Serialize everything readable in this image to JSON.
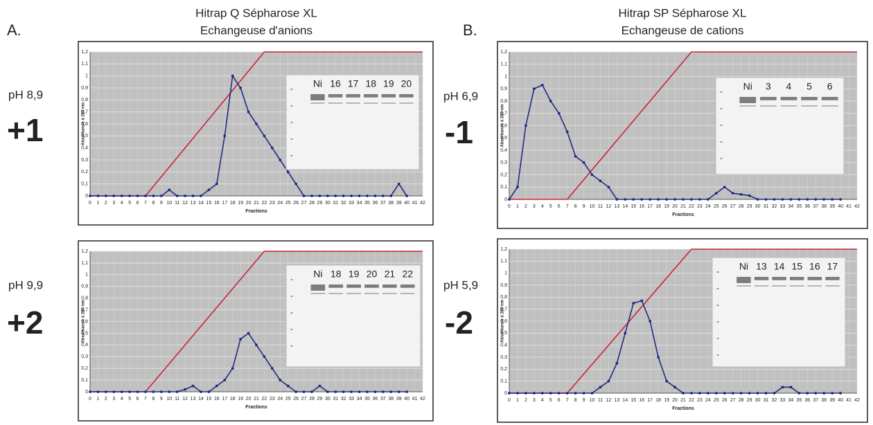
{
  "panels": [
    {
      "letter": "A.",
      "title": "Hitrap Q Sépharose XL",
      "subtitle": "Echangeuse d'anions"
    },
    {
      "letter": "B.",
      "title": "Hitrap SP Sépharose XL",
      "subtitle": "Echangeuse de cations"
    }
  ],
  "chart_data": [
    {
      "type": "line",
      "ph": "pH 8,9",
      "charge": "+1",
      "xlabel": "Fractions",
      "ylabel": "Absorbance à 280 nm",
      "xlim": [
        0,
        42
      ],
      "ylim": [
        0,
        1.2
      ],
      "grid": true,
      "xticks": [
        0,
        1,
        2,
        3,
        4,
        5,
        6,
        7,
        8,
        9,
        10,
        11,
        12,
        13,
        14,
        15,
        16,
        17,
        18,
        19,
        20,
        21,
        22,
        23,
        24,
        25,
        26,
        27,
        28,
        29,
        30,
        31,
        32,
        33,
        34,
        35,
        36,
        37,
        38,
        39,
        40,
        41,
        42
      ],
      "yticks": [
        0,
        {
          "value": 0.1,
          "label": "0,1"
        },
        {
          "value": 0.2,
          "label": "0,2"
        },
        {
          "value": 0.3,
          "label": "0,3"
        },
        {
          "value": 0.4,
          "label": "0,4"
        },
        {
          "value": 0.5,
          "label": "0,5"
        },
        {
          "value": 0.6,
          "label": "0,6"
        },
        {
          "value": 0.7,
          "label": "0,7"
        },
        {
          "value": 0.8,
          "label": "0,8"
        },
        {
          "value": 0.9,
          "label": "0,9"
        },
        1,
        {
          "value": 1.1,
          "label": "1,1"
        },
        {
          "value": 1.2,
          "label": "1,2"
        }
      ],
      "inset_labels": [
        "Ni",
        "16",
        "17",
        "18",
        "19",
        "20"
      ],
      "series": [
        {
          "color": "#cc2233",
          "marker": false,
          "x": [
            0,
            7,
            22,
            42
          ],
          "values": [
            0,
            0,
            1.2,
            1.2
          ]
        },
        {
          "color": "#1f2a80",
          "marker": true,
          "x": [
            0,
            1,
            2,
            3,
            4,
            5,
            6,
            7,
            8,
            9,
            10,
            11,
            12,
            13,
            14,
            15,
            16,
            17,
            18,
            19,
            20,
            21,
            22,
            23,
            24,
            25,
            26,
            27,
            28,
            29,
            30,
            31,
            32,
            33,
            34,
            35,
            36,
            37,
            38,
            39,
            40
          ],
          "values": [
            0,
            0,
            0,
            0,
            0,
            0,
            0,
            0,
            0,
            0,
            0.05,
            0,
            0,
            0,
            0,
            0.05,
            0.1,
            0.5,
            1.0,
            0.9,
            0.7,
            0.6,
            0.5,
            0.4,
            0.3,
            0.2,
            0.1,
            0,
            0,
            0,
            0,
            0,
            0,
            0,
            0,
            0,
            0,
            0,
            0,
            0.1,
            0
          ]
        }
      ]
    },
    {
      "type": "line",
      "ph": "pH 6,9",
      "charge": "-1",
      "xlabel": "Fractions",
      "ylabel": "Absorbance à 280 nm",
      "xlim": [
        0,
        42
      ],
      "ylim": [
        0,
        1.2
      ],
      "grid": true,
      "xticks": [
        0,
        1,
        2,
        3,
        4,
        5,
        6,
        7,
        8,
        9,
        10,
        11,
        12,
        13,
        14,
        15,
        16,
        17,
        18,
        19,
        20,
        21,
        22,
        23,
        24,
        25,
        26,
        27,
        28,
        29,
        30,
        31,
        32,
        33,
        34,
        35,
        36,
        37,
        38,
        39,
        40,
        41,
        42
      ],
      "yticks": [
        0,
        {
          "value": 0.1,
          "label": "0,1"
        },
        {
          "value": 0.2,
          "label": "0,2"
        },
        {
          "value": 0.3,
          "label": "0,3"
        },
        {
          "value": 0.4,
          "label": "0,4"
        },
        {
          "value": 0.5,
          "label": "0,5"
        },
        {
          "value": 0.6,
          "label": "0,6"
        },
        {
          "value": 0.7,
          "label": "0,7"
        },
        {
          "value": 0.8,
          "label": "0,8"
        },
        {
          "value": 0.9,
          "label": "0,9"
        },
        1,
        {
          "value": 1.1,
          "label": "1,1"
        },
        {
          "value": 1.2,
          "label": "1,2"
        }
      ],
      "inset_labels": [
        "Ni",
        "3",
        "4",
        "5",
        "6"
      ],
      "series": [
        {
          "color": "#cc2233",
          "marker": false,
          "x": [
            0,
            7,
            22,
            42
          ],
          "values": [
            0,
            0,
            1.2,
            1.2
          ]
        },
        {
          "color": "#1f2a80",
          "marker": true,
          "x": [
            0,
            1,
            2,
            3,
            4,
            5,
            6,
            7,
            8,
            9,
            10,
            11,
            12,
            13,
            14,
            15,
            16,
            17,
            18,
            19,
            20,
            21,
            22,
            23,
            24,
            25,
            26,
            27,
            28,
            29,
            30,
            31,
            32,
            33,
            34,
            35,
            36,
            37,
            38,
            39,
            40
          ],
          "values": [
            0,
            0.1,
            0.6,
            0.9,
            0.93,
            0.8,
            0.7,
            0.55,
            0.35,
            0.3,
            0.2,
            0.15,
            0.1,
            0,
            0,
            0,
            0,
            0,
            0,
            0,
            0,
            0,
            0,
            0,
            0,
            0.05,
            0.1,
            0.05,
            0.04,
            0.03,
            0,
            0,
            0,
            0,
            0,
            0,
            0,
            0,
            0,
            0,
            0
          ]
        }
      ]
    },
    {
      "type": "line",
      "ph": "pH 9,9",
      "charge": "+2",
      "xlabel": "Fractions",
      "ylabel": "Absorbance à 280 nm",
      "xlim": [
        0,
        42
      ],
      "ylim": [
        0,
        1.2
      ],
      "grid": true,
      "xticks": [
        0,
        1,
        2,
        3,
        4,
        5,
        6,
        7,
        8,
        9,
        10,
        11,
        12,
        13,
        14,
        15,
        16,
        17,
        18,
        19,
        20,
        21,
        22,
        23,
        24,
        25,
        26,
        27,
        28,
        29,
        30,
        31,
        32,
        33,
        34,
        35,
        36,
        37,
        38,
        39,
        40,
        41,
        42
      ],
      "yticks": [
        0,
        {
          "value": 0.1,
          "label": "0,1"
        },
        {
          "value": 0.2,
          "label": "0,2"
        },
        {
          "value": 0.3,
          "label": "0,3"
        },
        {
          "value": 0.4,
          "label": "0,4"
        },
        {
          "value": 0.5,
          "label": "0,5"
        },
        {
          "value": 0.6,
          "label": "0,6"
        },
        {
          "value": 0.7,
          "label": "0,7"
        },
        {
          "value": 0.8,
          "label": "0,8"
        },
        {
          "value": 0.9,
          "label": "0,9"
        },
        1,
        {
          "value": 1.1,
          "label": "1,1"
        },
        {
          "value": 1.2,
          "label": "1,2"
        }
      ],
      "inset_labels": [
        "Ni",
        "18",
        "19",
        "20",
        "21",
        "22"
      ],
      "series": [
        {
          "color": "#cc2233",
          "marker": false,
          "x": [
            0,
            7,
            22,
            42
          ],
          "values": [
            0,
            0,
            1.2,
            1.2
          ]
        },
        {
          "color": "#1f2a80",
          "marker": true,
          "x": [
            0,
            1,
            2,
            3,
            4,
            5,
            6,
            7,
            8,
            9,
            10,
            11,
            12,
            13,
            14,
            15,
            16,
            17,
            18,
            19,
            20,
            21,
            22,
            23,
            24,
            25,
            26,
            27,
            28,
            29,
            30,
            31,
            32,
            33,
            34,
            35,
            36,
            37,
            38,
            39,
            40
          ],
          "values": [
            0,
            0,
            0,
            0,
            0,
            0,
            0,
            0,
            0,
            0,
            0,
            0,
            0.02,
            0.05,
            0,
            0,
            0.05,
            0.1,
            0.2,
            0.45,
            0.5,
            0.4,
            0.3,
            0.2,
            0.1,
            0.05,
            0,
            0,
            0,
            0.05,
            0,
            0,
            0,
            0,
            0,
            0,
            0,
            0,
            0,
            0,
            0
          ]
        }
      ]
    },
    {
      "type": "line",
      "ph": "pH 5,9",
      "charge": "-2",
      "xlabel": "Fractions",
      "ylabel": "Absorbance à 280 nm",
      "xlim": [
        0,
        42
      ],
      "ylim": [
        0,
        1.2
      ],
      "grid": true,
      "xticks": [
        0,
        1,
        2,
        3,
        4,
        5,
        6,
        7,
        8,
        9,
        10,
        11,
        12,
        13,
        14,
        15,
        16,
        17,
        18,
        19,
        20,
        21,
        22,
        23,
        24,
        25,
        26,
        27,
        28,
        29,
        30,
        31,
        32,
        33,
        34,
        35,
        36,
        37,
        38,
        39,
        40,
        41,
        42
      ],
      "yticks": [
        0,
        {
          "value": 0.1,
          "label": "0,1"
        },
        {
          "value": 0.2,
          "label": "0,2"
        },
        {
          "value": 0.3,
          "label": "0,3"
        },
        {
          "value": 0.4,
          "label": "0,4"
        },
        {
          "value": 0.5,
          "label": "0,5"
        },
        {
          "value": 0.6,
          "label": "0,6"
        },
        {
          "value": 0.7,
          "label": "0,7"
        },
        {
          "value": 0.8,
          "label": "0,8"
        },
        {
          "value": 0.9,
          "label": "0,9"
        },
        1,
        {
          "value": 1.1,
          "label": "1,1"
        },
        {
          "value": 1.2,
          "label": "1,2"
        }
      ],
      "inset_labels": [
        "Ni",
        "13",
        "14",
        "15",
        "16",
        "17"
      ],
      "series": [
        {
          "color": "#cc2233",
          "marker": false,
          "x": [
            0,
            7,
            22,
            42
          ],
          "values": [
            0,
            0,
            1.2,
            1.2
          ]
        },
        {
          "color": "#1f2a80",
          "marker": true,
          "x": [
            0,
            1,
            2,
            3,
            4,
            5,
            6,
            7,
            8,
            9,
            10,
            11,
            12,
            13,
            14,
            15,
            16,
            17,
            18,
            19,
            20,
            21,
            22,
            23,
            24,
            25,
            26,
            27,
            28,
            29,
            30,
            31,
            32,
            33,
            34,
            35,
            36,
            37,
            38,
            39,
            40
          ],
          "values": [
            0,
            0,
            0,
            0,
            0,
            0,
            0,
            0,
            0,
            0,
            0,
            0.05,
            0.1,
            0.25,
            0.5,
            0.75,
            0.77,
            0.6,
            0.3,
            0.1,
            0.05,
            0,
            0,
            0,
            0,
            0,
            0,
            0,
            0,
            0,
            0,
            0,
            0,
            0.05,
            0.05,
            0,
            0,
            0,
            0,
            0,
            0
          ]
        }
      ]
    }
  ]
}
